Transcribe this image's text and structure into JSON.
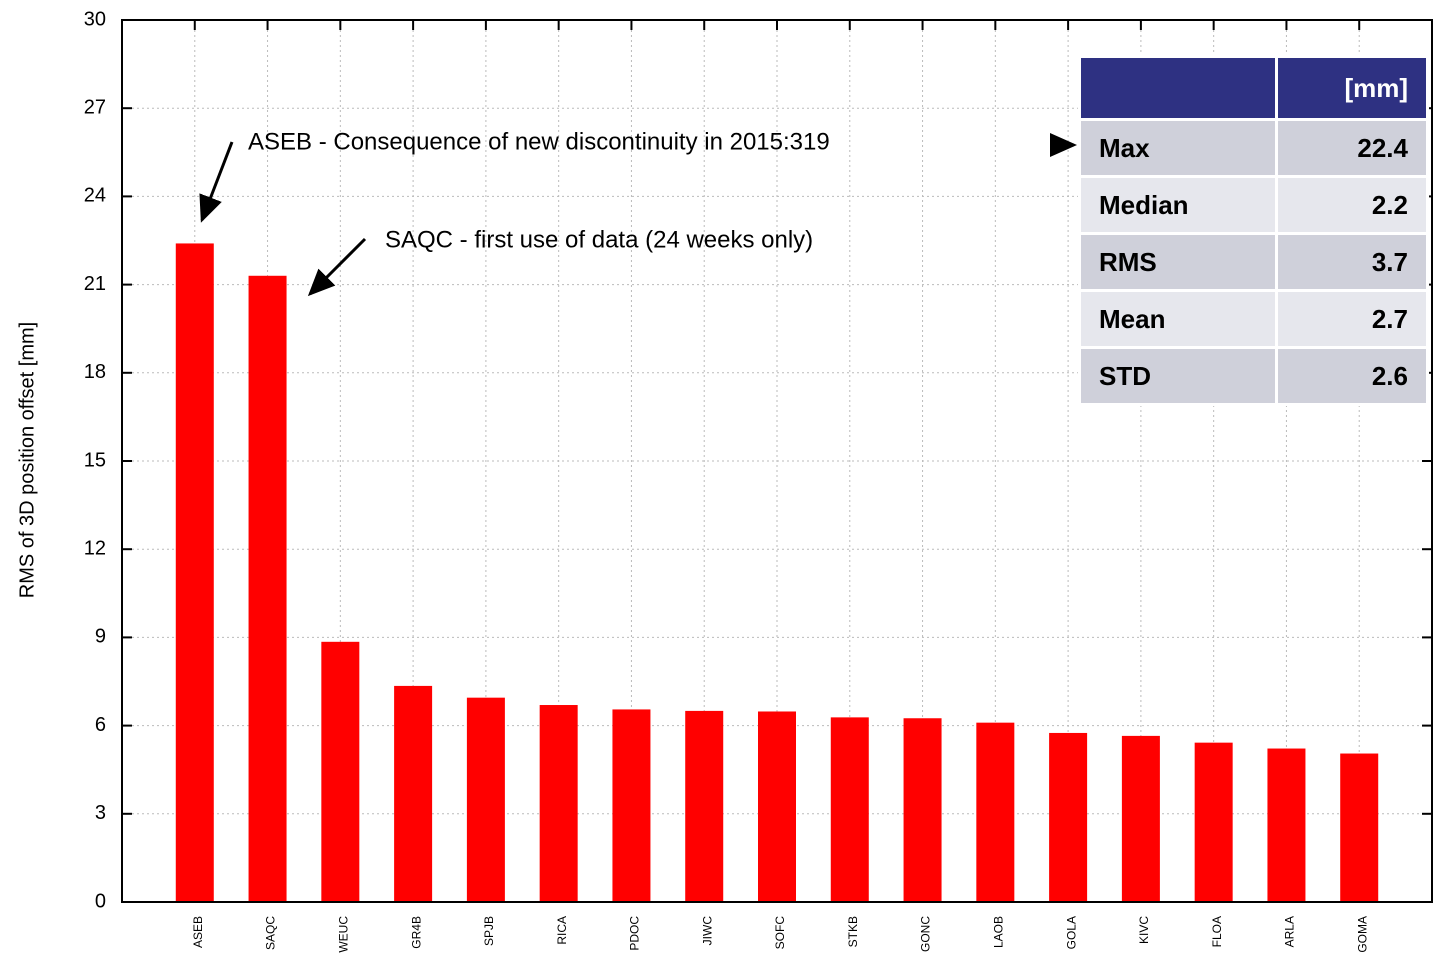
{
  "chart_data": {
    "type": "bar",
    "y_label": "RMS of 3D position offset [mm]",
    "categories": [
      "ASEB",
      "SAQC",
      "WEUC",
      "GR4B",
      "SPJB",
      "RICA",
      "PDOC",
      "JIWC",
      "SOFC",
      "STKB",
      "GONC",
      "LAOB",
      "GOLA",
      "KIVC",
      "FLOA",
      "ARLA",
      "GOMA"
    ],
    "values": [
      22.4,
      21.3,
      8.85,
      7.35,
      6.95,
      6.7,
      6.55,
      6.5,
      6.48,
      6.28,
      6.25,
      6.1,
      5.75,
      5.65,
      5.42,
      5.22,
      5.05
    ],
    "color": "#ff0000",
    "ylim": [
      0,
      30
    ],
    "yticks": [
      0,
      3,
      6,
      9,
      12,
      15,
      18,
      21,
      24,
      27,
      30
    ],
    "grid": true,
    "annotations": [
      "ASEB - Consequence of new discontinuity in 2015:319",
      "SAQC - first use of data (24 weeks only)"
    ]
  },
  "stats_table": {
    "header": "[mm]",
    "rows": [
      [
        "Max",
        "22.4"
      ],
      [
        "Median",
        "2.2"
      ],
      [
        "RMS",
        "3.7"
      ],
      [
        "Mean",
        "2.7"
      ],
      [
        "STD",
        "2.6"
      ]
    ]
  }
}
